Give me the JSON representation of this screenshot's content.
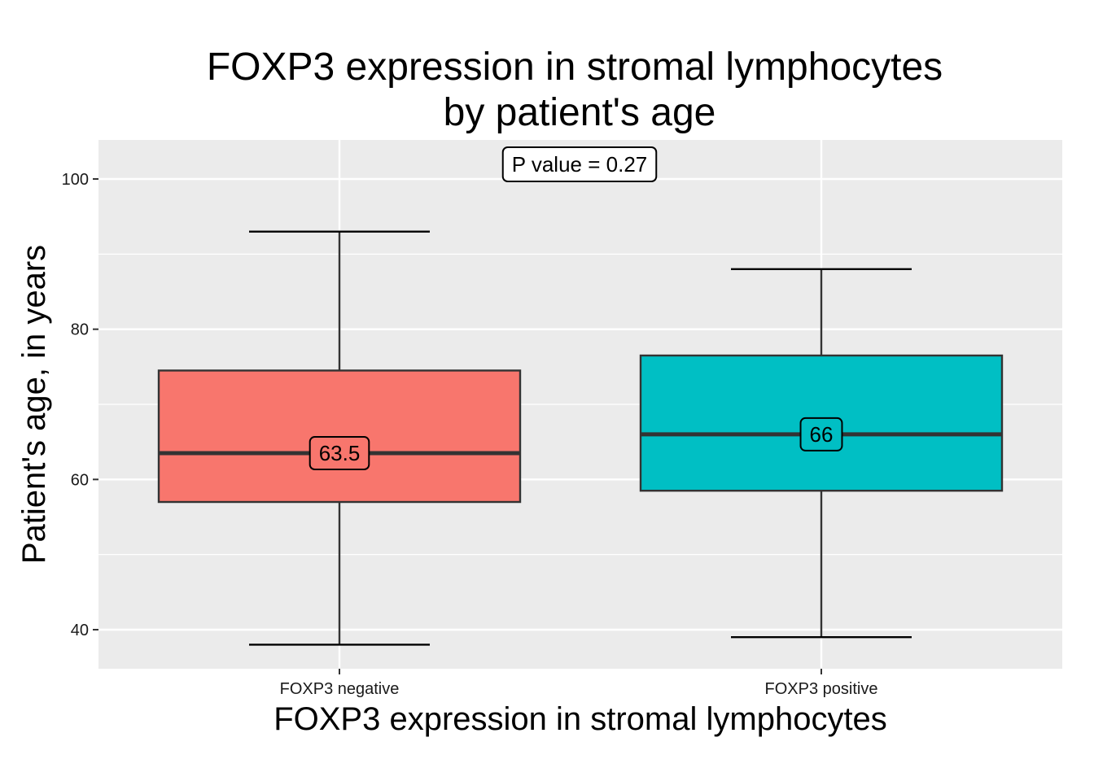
{
  "chart_data": {
    "type": "box",
    "title_lines": [
      "FOXP3 expression in stromal lymphocytes",
      "by patient's age"
    ],
    "xlabel": "FOXP3 expression in stromal lymphocytes",
    "ylabel": "Patient's age, in years",
    "ylim": [
      34.8,
      105.2
    ],
    "y_ticks": [
      40,
      60,
      80,
      100
    ],
    "y_minor_ticks": [
      50,
      70,
      90
    ],
    "grid": true,
    "background": "#ebebeb",
    "grid_color": "#ffffff",
    "annotation": "P value = 0.27",
    "categories": [
      "FOXP3 negative",
      "FOXP3 positive"
    ],
    "boxes": [
      {
        "category": "FOXP3 negative",
        "min": 38,
        "q1": 57,
        "median": 63.5,
        "q3": 74.5,
        "max": 93,
        "median_label": "63.5",
        "color": "#f8766d"
      },
      {
        "category": "FOXP3 positive",
        "min": 39,
        "q1": 58.5,
        "median": 66,
        "q3": 76.5,
        "max": 88,
        "median_label": "66",
        "color": "#00bfc4"
      }
    ]
  }
}
